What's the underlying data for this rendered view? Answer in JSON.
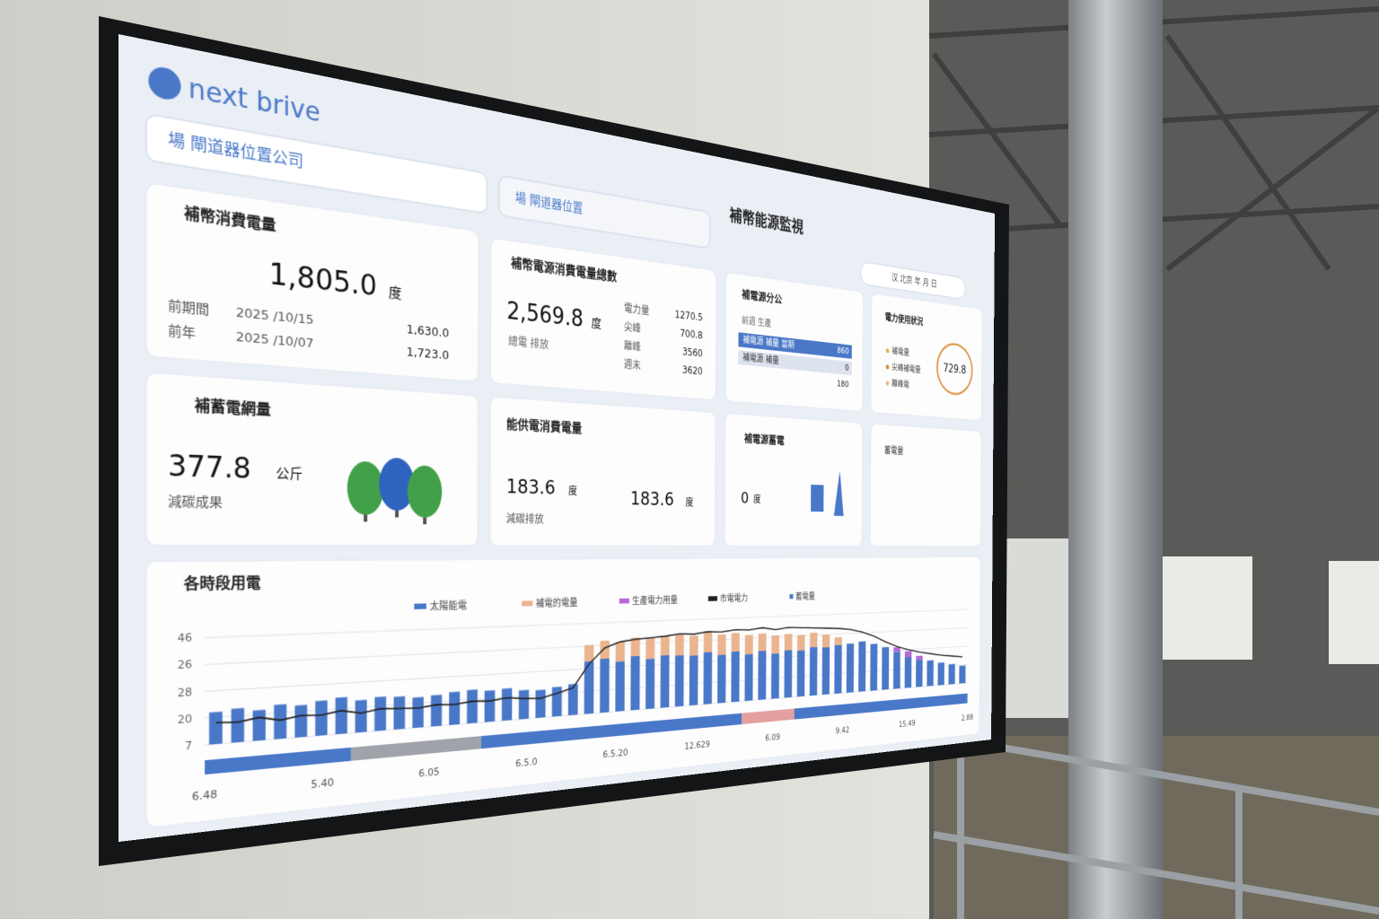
{
  "header": {
    "logo": "next brive",
    "site_selector": "場 閘道器位置公司",
    "device_selector": "場 閘道器位置",
    "title": "補幣能源監視",
    "period_pill": "汉 北京 年 月 日"
  },
  "cards": [
    {
      "title": "補幣消費電量",
      "value": "1,805.0",
      "unit": "度",
      "rows": [
        {
          "label": "前期間",
          "date": "2025 /10/15",
          "value": "1,630.0"
        },
        {
          "label": "前年",
          "date": "2025 /10/07",
          "value": "1,723.0"
        }
      ]
    },
    {
      "title": "補幣電源消費電量總數",
      "value": "2,569.8",
      "unit": "度",
      "sub": "總電 排放",
      "rows": [
        {
          "label": "電力量",
          "value": "1270.5"
        },
        {
          "label": "尖峰",
          "value": "700.8"
        },
        {
          "label": "離峰",
          "value": "3560"
        },
        {
          "label": "週末",
          "value": "3620"
        }
      ]
    },
    {
      "title": "補電源分公",
      "sub": "前週 生產",
      "rows": [
        {
          "label": "補電源 補量 當期",
          "value": "860"
        },
        {
          "label": "補電源 補量",
          "value": "0"
        },
        {
          "value": "180"
        }
      ]
    },
    {
      "title": "電力使用狀況",
      "value": "729.8",
      "legend": [
        "補電量",
        "尖峰補電量",
        "離峰電"
      ]
    },
    {
      "title": "補蓄電網量",
      "value": "377.8",
      "unit": "公斤",
      "sub": "減碳成果"
    },
    {
      "title": "能供電消費電量",
      "value": "183.6",
      "unit": "度",
      "sub": "減碳排放",
      "value2": "183.6",
      "unit2": "度"
    },
    {
      "title": "補電源蓄電",
      "value": "0",
      "unit": "度"
    },
    {
      "title": "蓄電量"
    }
  ],
  "chart_data": {
    "type": "bar",
    "title": "各時段用電",
    "stacked": true,
    "ylim": [
      0,
      100
    ],
    "y_axis_labels": [
      "46",
      "26",
      "28",
      "20",
      "7"
    ],
    "x_labels": [
      "6.48",
      "5.40",
      "6.05",
      "6.5.0",
      "6.5.20",
      "12.629",
      "6.09",
      "9.42",
      "15.49",
      "2.88"
    ],
    "series": [
      {
        "name": "太陽能電",
        "color": "#4a78c8",
        "values": [
          30,
          32,
          29,
          33,
          31,
          34,
          36,
          32,
          34,
          33,
          31,
          32,
          34,
          35,
          33,
          34,
          31,
          30,
          32,
          34,
          58,
          60,
          56,
          61,
          57,
          60,
          59,
          58,
          61,
          57,
          60,
          56,
          59,
          55,
          58,
          57,
          60,
          59,
          61,
          62,
          64,
          60,
          55,
          48,
          40,
          36,
          34,
          30,
          27,
          24
        ]
      },
      {
        "name": "補電的電量",
        "color": "#eab48e",
        "values": [
          null,
          null,
          null,
          null,
          null,
          null,
          null,
          null,
          null,
          null,
          null,
          null,
          null,
          null,
          null,
          null,
          null,
          null,
          null,
          null,
          18,
          20,
          22,
          21,
          23,
          22,
          24,
          23,
          25,
          24,
          22,
          23,
          21,
          22,
          20,
          19,
          18,
          16,
          10,
          null,
          null,
          null,
          null,
          null,
          null,
          null,
          null,
          null,
          null,
          null
        ]
      },
      {
        "name": "生產電力用量",
        "color": "#b36ad8",
        "values": [
          null,
          null,
          null,
          null,
          null,
          null,
          null,
          null,
          null,
          null,
          null,
          null,
          null,
          null,
          null,
          null,
          null,
          null,
          null,
          null,
          null,
          null,
          null,
          null,
          null,
          null,
          null,
          null,
          null,
          null,
          null,
          null,
          null,
          null,
          null,
          null,
          null,
          null,
          null,
          null,
          null,
          null,
          null,
          6,
          8,
          5,
          null,
          null,
          null,
          null
        ]
      },
      {
        "name": "市電電力",
        "type": "line",
        "color": "#222222",
        "values": [
          20,
          19,
          22,
          18,
          21,
          20,
          23,
          19,
          22,
          21,
          20,
          22,
          21,
          23,
          22,
          24,
          22,
          21,
          25,
          30,
          55,
          72,
          78,
          80,
          81,
          82,
          84,
          83,
          85,
          84,
          86,
          85,
          87,
          84,
          86,
          85,
          84,
          83,
          82,
          80,
          76,
          70,
          62,
          55,
          50,
          46,
          43,
          40,
          38,
          36
        ]
      }
    ],
    "legend_extra": "蓄電量"
  }
}
